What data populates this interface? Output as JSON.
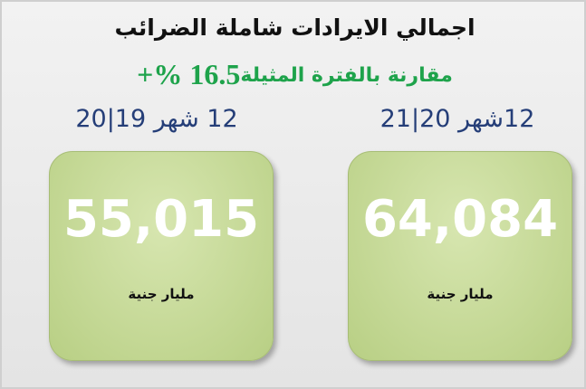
{
  "title": "اجمالي الايرادات شاملة الضرائب",
  "comparison": {
    "change": "+% 16.5",
    "text": "مقارنة بالفترة المثيلة"
  },
  "cards": [
    {
      "period": "12 شهر 19|20",
      "value": "55,015",
      "unit": "مليار جنية"
    },
    {
      "period": "12شهر 20|21",
      "value": "64,084",
      "unit": "مليار جنية"
    }
  ]
}
